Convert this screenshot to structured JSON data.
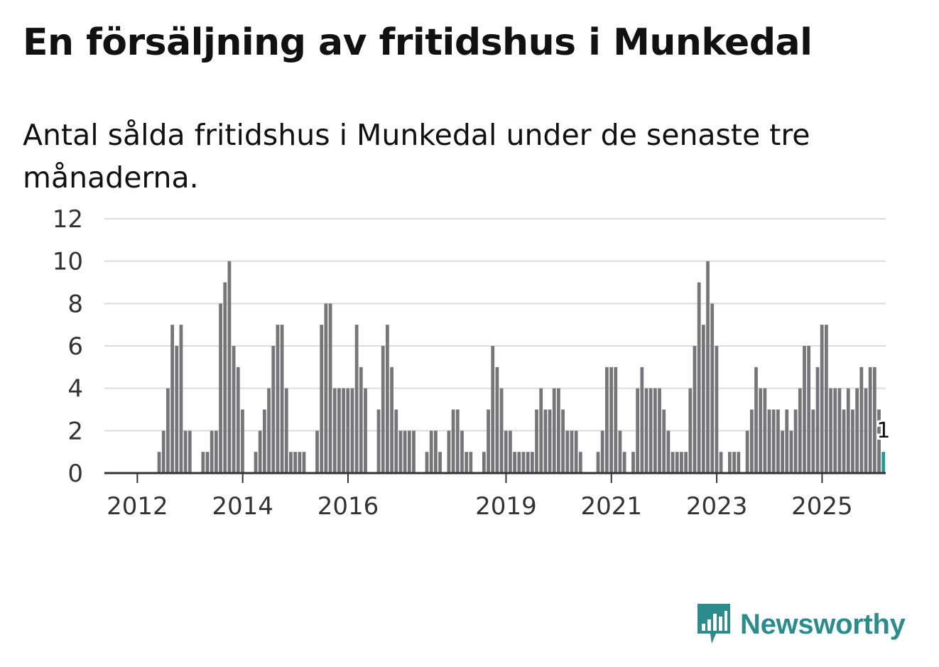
{
  "title": "En försäljning av fritidshus i Munkedal",
  "subtitle": "Antal sålda fritidshus i Munkedal under de senaste tre månaderna.",
  "brand": {
    "name": "Newsworthy",
    "color": "#2a8c8c"
  },
  "colors": {
    "bar": "#76767a",
    "highlight": "#1a9e97",
    "grid": "#dcdcdc",
    "axis": "#333333"
  },
  "chart_data": {
    "type": "bar",
    "title": "Antal sålda fritidshus i Munkedal under de senaste tre månaderna.",
    "xlabel": "",
    "ylabel": "",
    "ylim": [
      0,
      12
    ],
    "yticks": [
      0,
      2,
      4,
      6,
      8,
      10,
      12
    ],
    "grid": true,
    "x_start": "2011-06",
    "xticks": [
      {
        "label": "2012",
        "index": 7
      },
      {
        "label": "2014",
        "index": 31
      },
      {
        "label": "2016",
        "index": 55
      },
      {
        "label": "2019",
        "index": 91
      },
      {
        "label": "2021",
        "index": 115
      },
      {
        "label": "2023",
        "index": 139
      },
      {
        "label": "2025",
        "index": 163
      }
    ],
    "values": [
      0,
      0,
      0,
      0,
      0,
      0,
      0,
      0,
      0,
      0,
      0,
      0,
      1,
      2,
      4,
      7,
      6,
      7,
      2,
      2,
      0,
      0,
      1,
      1,
      2,
      2,
      8,
      9,
      10,
      6,
      5,
      3,
      0,
      0,
      1,
      2,
      3,
      4,
      6,
      7,
      7,
      4,
      1,
      1,
      1,
      1,
      0,
      0,
      2,
      7,
      8,
      8,
      4,
      4,
      4,
      4,
      4,
      7,
      5,
      4,
      0,
      0,
      3,
      6,
      7,
      5,
      3,
      2,
      2,
      2,
      2,
      0,
      0,
      1,
      2,
      2,
      1,
      0,
      2,
      3,
      3,
      2,
      1,
      1,
      0,
      0,
      1,
      3,
      6,
      5,
      4,
      2,
      2,
      1,
      1,
      1,
      1,
      1,
      3,
      4,
      3,
      3,
      4,
      4,
      3,
      2,
      2,
      2,
      1,
      0,
      0,
      0,
      1,
      2,
      5,
      5,
      5,
      2,
      1,
      0,
      1,
      4,
      5,
      4,
      4,
      4,
      4,
      3,
      2,
      1,
      1,
      1,
      1,
      4,
      6,
      9,
      7,
      10,
      8,
      6,
      1,
      0,
      1,
      1,
      1,
      0,
      2,
      3,
      5,
      4,
      4,
      3,
      3,
      3,
      2,
      3,
      2,
      3,
      4,
      6,
      6,
      3,
      5,
      7,
      7,
      4,
      4,
      4,
      3,
      4,
      3,
      4,
      5,
      4,
      5,
      5,
      3,
      1
    ],
    "highlight_last": true,
    "last_label": "1"
  }
}
